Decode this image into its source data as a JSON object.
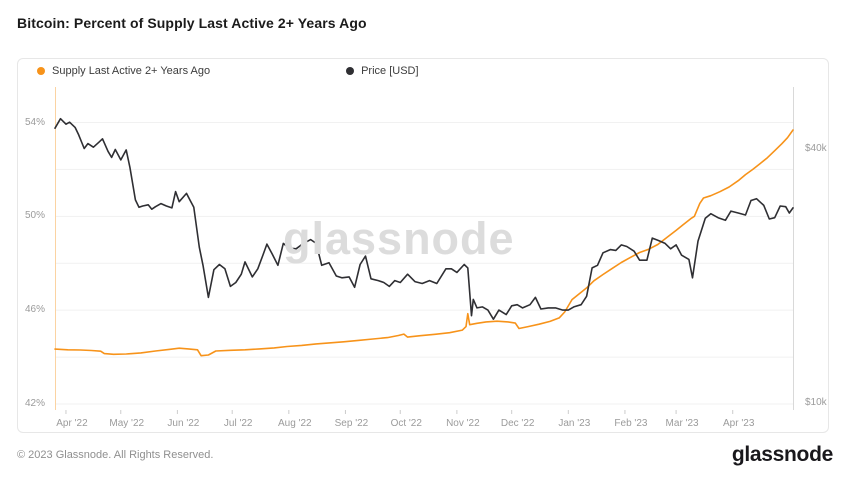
{
  "header": {
    "title": "Bitcoin: Percent of Supply Last Active 2+ Years Ago"
  },
  "legend": {
    "items": [
      {
        "label": "Supply Last Active 2+ Years Ago",
        "color": "#f7931a"
      },
      {
        "label": "Price [USD]",
        "color": "#2f2f33"
      }
    ]
  },
  "watermark": "glassnode",
  "footer": {
    "copyright": "© 2023 Glassnode. All Rights Reserved.",
    "logo": "glassnode"
  },
  "chart_data": {
    "type": "line",
    "title": "Bitcoin: Percent of Supply Last Active 2+ Years Ago",
    "legend_position": "top-left",
    "grid": true,
    "x_axis": {
      "range": [
        "2022-03-26",
        "2023-05-04"
      ],
      "tick_dates": [
        "2022-04-01",
        "2022-05-01",
        "2022-06-01",
        "2022-07-01",
        "2022-08-01",
        "2022-09-01",
        "2022-10-01",
        "2022-11-01",
        "2022-12-01",
        "2023-01-01",
        "2023-02-01",
        "2023-03-01",
        "2023-04-01"
      ],
      "tick_labels": [
        "Apr '22",
        "May '22",
        "Jun '22",
        "Jul '22",
        "Aug '22",
        "Sep '22",
        "Oct '22",
        "Nov '22",
        "Dec '22",
        "Jan '23",
        "Feb '23",
        "Mar '23",
        "Apr '23"
      ]
    },
    "left_axis": {
      "title": "Supply Last Active 2+ Years Ago",
      "unit": "%",
      "scale": "linear",
      "tick_labels": [
        "54%",
        "50%",
        "46%",
        "42%"
      ],
      "tick_values": [
        54,
        50,
        46,
        42
      ],
      "grid_values": [
        54,
        52,
        50,
        48,
        46,
        44,
        42
      ],
      "axis_line_color": "#fbd3a2"
    },
    "right_axis": {
      "title": "Price [USD]",
      "unit": "USD",
      "scale": "log",
      "tick_labels": [
        "$40k",
        "$10k"
      ],
      "tick_values": [
        40000,
        10000
      ],
      "axis_line_color": "#d9d9d9"
    },
    "series": [
      {
        "name": "Supply Last Active 2+ Years Ago",
        "axis": "left",
        "color": "#f7931a",
        "points": [
          [
            "2022-03-26",
            44.34
          ],
          [
            "2022-04-02",
            44.31
          ],
          [
            "2022-04-09",
            44.3
          ],
          [
            "2022-04-15",
            44.28
          ],
          [
            "2022-04-20",
            44.25
          ],
          [
            "2022-04-22",
            44.15
          ],
          [
            "2022-04-27",
            44.12
          ],
          [
            "2022-05-04",
            44.13
          ],
          [
            "2022-05-12",
            44.18
          ],
          [
            "2022-05-20",
            44.26
          ],
          [
            "2022-05-28",
            44.33
          ],
          [
            "2022-06-02",
            44.38
          ],
          [
            "2022-06-07",
            44.35
          ],
          [
            "2022-06-12",
            44.31
          ],
          [
            "2022-06-14",
            44.06
          ],
          [
            "2022-06-18",
            44.09
          ],
          [
            "2022-06-22",
            44.26
          ],
          [
            "2022-06-30",
            44.29
          ],
          [
            "2022-07-08",
            44.31
          ],
          [
            "2022-07-16",
            44.35
          ],
          [
            "2022-07-24",
            44.39
          ],
          [
            "2022-07-31",
            44.45
          ],
          [
            "2022-08-08",
            44.5
          ],
          [
            "2022-08-16",
            44.56
          ],
          [
            "2022-08-24",
            44.61
          ],
          [
            "2022-08-31",
            44.65
          ],
          [
            "2022-09-08",
            44.71
          ],
          [
            "2022-09-16",
            44.77
          ],
          [
            "2022-09-24",
            44.83
          ],
          [
            "2022-09-30",
            44.92
          ],
          [
            "2022-10-03",
            44.98
          ],
          [
            "2022-10-05",
            44.85
          ],
          [
            "2022-10-12",
            44.91
          ],
          [
            "2022-10-20",
            44.97
          ],
          [
            "2022-10-28",
            45.04
          ],
          [
            "2022-11-04",
            45.15
          ],
          [
            "2022-11-06",
            45.3
          ],
          [
            "2022-11-07",
            45.85
          ],
          [
            "2022-11-08",
            45.38
          ],
          [
            "2022-11-12",
            45.44
          ],
          [
            "2022-11-17",
            45.5
          ],
          [
            "2022-11-23",
            45.53
          ],
          [
            "2022-11-29",
            45.5
          ],
          [
            "2022-12-03",
            45.45
          ],
          [
            "2022-12-05",
            45.22
          ],
          [
            "2022-12-10",
            45.3
          ],
          [
            "2022-12-16",
            45.4
          ],
          [
            "2022-12-22",
            45.52
          ],
          [
            "2022-12-27",
            45.67
          ],
          [
            "2022-12-30",
            45.92
          ],
          [
            "2023-01-03",
            46.45
          ],
          [
            "2023-01-07",
            46.7
          ],
          [
            "2023-01-11",
            46.95
          ],
          [
            "2023-01-15",
            47.25
          ],
          [
            "2023-01-20",
            47.52
          ],
          [
            "2023-01-25",
            47.78
          ],
          [
            "2023-01-30",
            48.03
          ],
          [
            "2023-02-04",
            48.25
          ],
          [
            "2023-02-09",
            48.46
          ],
          [
            "2023-02-14",
            48.6
          ],
          [
            "2023-02-19",
            48.8
          ],
          [
            "2023-02-24",
            49.1
          ],
          [
            "2023-03-01",
            49.4
          ],
          [
            "2023-03-05",
            49.65
          ],
          [
            "2023-03-09",
            49.9
          ],
          [
            "2023-03-11",
            50.0
          ],
          [
            "2023-03-14",
            50.55
          ],
          [
            "2023-03-16",
            50.78
          ],
          [
            "2023-03-20",
            50.88
          ],
          [
            "2023-03-25",
            51.05
          ],
          [
            "2023-03-30",
            51.25
          ],
          [
            "2023-04-04",
            51.52
          ],
          [
            "2023-04-08",
            51.78
          ],
          [
            "2023-04-12",
            52.0
          ],
          [
            "2023-04-16",
            52.25
          ],
          [
            "2023-04-20",
            52.5
          ],
          [
            "2023-04-24",
            52.8
          ],
          [
            "2023-04-28",
            53.1
          ],
          [
            "2023-05-01",
            53.35
          ],
          [
            "2023-05-04",
            53.68
          ]
        ]
      },
      {
        "name": "Price [USD]",
        "axis": "right",
        "color": "#2f2f33",
        "points": [
          [
            "2022-03-26",
            44800
          ],
          [
            "2022-03-29",
            47200
          ],
          [
            "2022-04-01",
            45800
          ],
          [
            "2022-04-03",
            46300
          ],
          [
            "2022-04-06",
            45000
          ],
          [
            "2022-04-08",
            43200
          ],
          [
            "2022-04-11",
            40100
          ],
          [
            "2022-04-13",
            41200
          ],
          [
            "2022-04-16",
            40400
          ],
          [
            "2022-04-19",
            41500
          ],
          [
            "2022-04-21",
            42300
          ],
          [
            "2022-04-24",
            39500
          ],
          [
            "2022-04-26",
            38200
          ],
          [
            "2022-04-28",
            39900
          ],
          [
            "2022-05-01",
            37700
          ],
          [
            "2022-05-04",
            39800
          ],
          [
            "2022-05-06",
            36200
          ],
          [
            "2022-05-09",
            30300
          ],
          [
            "2022-05-11",
            29100
          ],
          [
            "2022-05-13",
            29300
          ],
          [
            "2022-05-16",
            29500
          ],
          [
            "2022-05-18",
            28800
          ],
          [
            "2022-05-20",
            29200
          ],
          [
            "2022-05-23",
            29700
          ],
          [
            "2022-05-26",
            29300
          ],
          [
            "2022-05-29",
            29000
          ],
          [
            "2022-05-31",
            31700
          ],
          [
            "2022-06-02",
            30000
          ],
          [
            "2022-06-06",
            31400
          ],
          [
            "2022-06-08",
            30200
          ],
          [
            "2022-06-10",
            29100
          ],
          [
            "2022-06-13",
            23400
          ],
          [
            "2022-06-15",
            21200
          ],
          [
            "2022-06-18",
            17800
          ],
          [
            "2022-06-21",
            20700
          ],
          [
            "2022-06-24",
            21300
          ],
          [
            "2022-06-27",
            20800
          ],
          [
            "2022-06-30",
            18900
          ],
          [
            "2022-07-03",
            19300
          ],
          [
            "2022-07-06",
            20200
          ],
          [
            "2022-07-08",
            21600
          ],
          [
            "2022-07-12",
            19900
          ],
          [
            "2022-07-15",
            20800
          ],
          [
            "2022-07-18",
            22500
          ],
          [
            "2022-07-20",
            23800
          ],
          [
            "2022-07-23",
            22500
          ],
          [
            "2022-07-26",
            21200
          ],
          [
            "2022-07-29",
            23900
          ],
          [
            "2022-08-01",
            23300
          ],
          [
            "2022-08-05",
            23200
          ],
          [
            "2022-08-09",
            23900
          ],
          [
            "2022-08-13",
            24400
          ],
          [
            "2022-08-16",
            23900
          ],
          [
            "2022-08-19",
            21200
          ],
          [
            "2022-08-23",
            21500
          ],
          [
            "2022-08-27",
            20000
          ],
          [
            "2022-08-30",
            19800
          ],
          [
            "2022-09-03",
            19900
          ],
          [
            "2022-09-06",
            18800
          ],
          [
            "2022-09-09",
            21300
          ],
          [
            "2022-09-12",
            22300
          ],
          [
            "2022-09-15",
            19700
          ],
          [
            "2022-09-19",
            19500
          ],
          [
            "2022-09-22",
            19300
          ],
          [
            "2022-09-25",
            18900
          ],
          [
            "2022-09-28",
            19500
          ],
          [
            "2022-10-01",
            19300
          ],
          [
            "2022-10-05",
            20200
          ],
          [
            "2022-10-09",
            19400
          ],
          [
            "2022-10-13",
            19200
          ],
          [
            "2022-10-17",
            19500
          ],
          [
            "2022-10-21",
            19200
          ],
          [
            "2022-10-26",
            20800
          ],
          [
            "2022-10-29",
            20800
          ],
          [
            "2022-11-01",
            20400
          ],
          [
            "2022-11-05",
            21300
          ],
          [
            "2022-11-07",
            20900
          ],
          [
            "2022-11-09",
            16100
          ],
          [
            "2022-11-10",
            17600
          ],
          [
            "2022-11-12",
            16800
          ],
          [
            "2022-11-15",
            16900
          ],
          [
            "2022-11-18",
            16600
          ],
          [
            "2022-11-21",
            15800
          ],
          [
            "2022-11-24",
            16600
          ],
          [
            "2022-11-28",
            16200
          ],
          [
            "2022-12-01",
            17000
          ],
          [
            "2022-12-04",
            17100
          ],
          [
            "2022-12-07",
            16800
          ],
          [
            "2022-12-11",
            17100
          ],
          [
            "2022-12-14",
            17800
          ],
          [
            "2022-12-17",
            16700
          ],
          [
            "2022-12-21",
            16800
          ],
          [
            "2022-12-25",
            16800
          ],
          [
            "2022-12-29",
            16600
          ],
          [
            "2023-01-01",
            16600
          ],
          [
            "2023-01-04",
            16900
          ],
          [
            "2023-01-08",
            17100
          ],
          [
            "2023-01-11",
            17900
          ],
          [
            "2023-01-14",
            20900
          ],
          [
            "2023-01-17",
            21200
          ],
          [
            "2023-01-20",
            22700
          ],
          [
            "2023-01-24",
            23100
          ],
          [
            "2023-01-27",
            23000
          ],
          [
            "2023-01-30",
            23700
          ],
          [
            "2023-02-02",
            23500
          ],
          [
            "2023-02-06",
            22900
          ],
          [
            "2023-02-09",
            21800
          ],
          [
            "2023-02-13",
            21800
          ],
          [
            "2023-02-16",
            24600
          ],
          [
            "2023-02-19",
            24300
          ],
          [
            "2023-02-23",
            23900
          ],
          [
            "2023-02-26",
            23200
          ],
          [
            "2023-03-01",
            23700
          ],
          [
            "2023-03-04",
            22400
          ],
          [
            "2023-03-08",
            21900
          ],
          [
            "2023-03-10",
            19800
          ],
          [
            "2023-03-13",
            24200
          ],
          [
            "2023-03-17",
            27400
          ],
          [
            "2023-03-20",
            28100
          ],
          [
            "2023-03-24",
            27500
          ],
          [
            "2023-03-28",
            27100
          ],
          [
            "2023-03-31",
            28500
          ],
          [
            "2023-04-04",
            28200
          ],
          [
            "2023-04-08",
            27900
          ],
          [
            "2023-04-11",
            30200
          ],
          [
            "2023-04-14",
            30500
          ],
          [
            "2023-04-18",
            29400
          ],
          [
            "2023-04-21",
            27300
          ],
          [
            "2023-04-24",
            27500
          ],
          [
            "2023-04-27",
            29300
          ],
          [
            "2023-04-30",
            29200
          ],
          [
            "2023-05-02",
            28200
          ],
          [
            "2023-05-04",
            29000
          ]
        ]
      }
    ]
  }
}
